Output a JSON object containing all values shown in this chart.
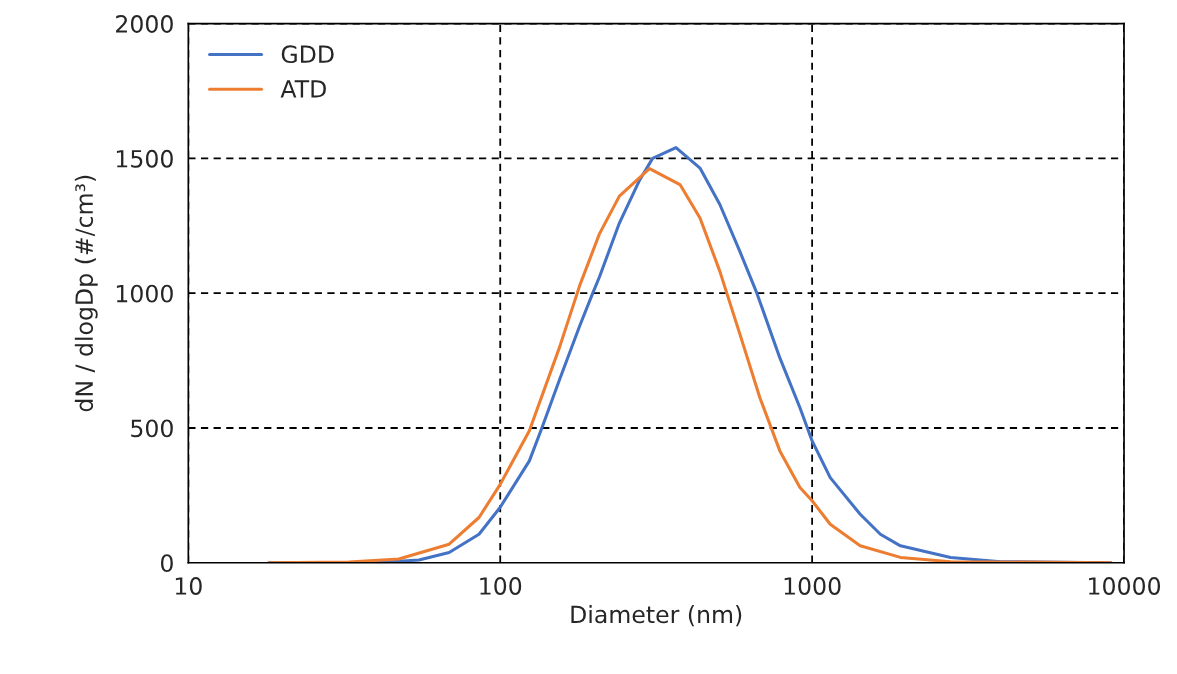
{
  "chart_data": {
    "type": "line",
    "xlabel": "Diameter (nm)",
    "ylabel": "dN / dlogDp (#/cm³)",
    "log": "x",
    "xlim": [
      10,
      10000
    ],
    "xticks": [
      10,
      100,
      1000,
      10000
    ],
    "ylim": [
      0,
      2000
    ],
    "yticks": [
      0,
      500,
      1000,
      1500,
      2000
    ],
    "grid": true,
    "legend": "top left",
    "marker": "none",
    "line_style": "solid",
    "series": [
      {
        "name": "GDD",
        "color": "#4472c4",
        "x": [
          18.1,
          40.8,
          54.9,
          68.6,
          85.5,
          100,
          124,
          136,
          155,
          180,
          198,
          208,
          241,
          280,
          308,
          366,
          437,
          506,
          586,
          665,
          788,
          914,
          1000,
          1143,
          1426,
          1655,
          1919,
          2780,
          4027,
          9080
        ],
        "values": [
          0,
          1,
          10,
          38,
          106,
          206,
          378,
          500,
          680,
          880,
          1000,
          1060,
          1260,
          1420,
          1500,
          1540,
          1464,
          1329,
          1156,
          1000,
          760,
          575,
          452,
          316,
          180,
          106,
          63,
          20,
          4,
          0
        ]
      },
      {
        "name": "ATD",
        "color": "#ed7d31",
        "x": [
          18.1,
          32.7,
          47.3,
          68.6,
          85.5,
          100,
          124,
          155,
          180,
          208,
          241,
          301,
          377,
          437,
          506,
          586,
          680,
          788,
          914,
          1000,
          1143,
          1426,
          1919,
          2780,
          9080
        ],
        "values": [
          0,
          3,
          14,
          69,
          168,
          291,
          490,
          800,
          1030,
          1220,
          1360,
          1462,
          1403,
          1279,
          1081,
          850,
          612,
          415,
          279,
          230,
          143,
          63,
          20,
          4,
          0
        ]
      }
    ]
  }
}
